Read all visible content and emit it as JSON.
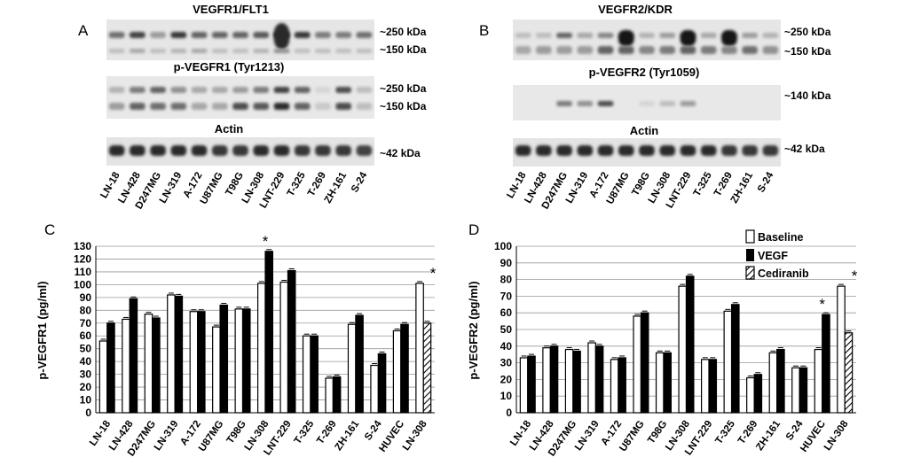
{
  "panels": {
    "A": {
      "letter": "A",
      "blots": [
        {
          "title": "VEGFR1/FLT1",
          "markers": [
            "~250 kDa",
            "~150 kDa"
          ]
        },
        {
          "title": "p-VEGFR1 (Tyr1213)",
          "markers": [
            "~250 kDa",
            "~150 kDa"
          ]
        },
        {
          "title": "Actin",
          "markers": [
            "~42 kDa"
          ]
        }
      ],
      "lanes": [
        "LN-18",
        "LN-428",
        "D247MG",
        "LN-319",
        "A-172",
        "U87MG",
        "T98G",
        "LN-308",
        "LNT-229",
        "T-325",
        "T-269",
        "ZH-161",
        "S-24"
      ]
    },
    "B": {
      "letter": "B",
      "blots": [
        {
          "title": "VEGFR2/KDR",
          "markers": [
            "~250 kDa",
            "~150 kDa"
          ]
        },
        {
          "title": "p-VEGFR2 (Tyr1059)",
          "markers": [
            "~140 kDa"
          ]
        },
        {
          "title": "Actin",
          "markers": [
            "~42 kDa"
          ]
        }
      ],
      "lanes": [
        "LN-18",
        "LN-428",
        "D247MG",
        "LN-319",
        "A-172",
        "U87MG",
        "T98G",
        "LN-308",
        "LNT-229",
        "T-325",
        "T-269",
        "ZH-161",
        "S-24"
      ]
    },
    "C": {
      "letter": "C"
    },
    "D": {
      "letter": "D"
    }
  },
  "legend": {
    "items": [
      "Baseline",
      "VEGF",
      "Cediranib"
    ]
  },
  "colors": {
    "baseline": "#ffffff",
    "vegf": "#000000",
    "grid": "#999999"
  },
  "chart_data": [
    {
      "type": "bar",
      "panel": "C",
      "ylabel": "p-VEGFR1 (pg/ml)",
      "ylim": [
        0,
        130
      ],
      "yticks": [
        0,
        10,
        20,
        30,
        40,
        50,
        60,
        70,
        80,
        90,
        100,
        110,
        120,
        130
      ],
      "categories": [
        "LN-18",
        "LN-428",
        "D247MG",
        "LN-319",
        "A-172",
        "U87MG",
        "T98G",
        "LN-308",
        "LNT-229",
        "T-325",
        "T-269",
        "ZH-161",
        "S-24",
        "HUVEC",
        "LN-308"
      ],
      "series": [
        {
          "name": "Baseline",
          "values": [
            56,
            73,
            77,
            92,
            79,
            67,
            81,
            101,
            102,
            60,
            27,
            69,
            37,
            64,
            101
          ]
        },
        {
          "name": "VEGF",
          "values": [
            70,
            89,
            74,
            91,
            79,
            84,
            81,
            126,
            111,
            60,
            28,
            76,
            46,
            69,
            null
          ]
        },
        {
          "name": "Cediranib",
          "values": [
            null,
            null,
            null,
            null,
            null,
            null,
            null,
            null,
            null,
            null,
            null,
            null,
            null,
            null,
            70
          ]
        }
      ],
      "annotations": [
        {
          "text": "*",
          "category_index": 7
        },
        {
          "text": "*",
          "category_index": 14
        }
      ]
    },
    {
      "type": "bar",
      "panel": "D",
      "ylabel": "p-VEGFR2 (pg/ml)",
      "ylim": [
        0,
        100
      ],
      "yticks": [
        0,
        10,
        20,
        30,
        40,
        50,
        60,
        70,
        80,
        90,
        100
      ],
      "categories": [
        "LN-18",
        "LN-428",
        "D247MG",
        "LN-319",
        "A-172",
        "U87MG",
        "T98G",
        "LN-308",
        "LNT-229",
        "T-325",
        "T-269",
        "ZH-161",
        "S-24",
        "HUVEC",
        "LN-308"
      ],
      "series": [
        {
          "name": "Baseline",
          "values": [
            33,
            39,
            38,
            42,
            32,
            58,
            36,
            76,
            32,
            61,
            21,
            36,
            27,
            38,
            76
          ]
        },
        {
          "name": "VEGF",
          "values": [
            34,
            40,
            37,
            40,
            33,
            60,
            36,
            82,
            32,
            65,
            23,
            38,
            27,
            59,
            null
          ]
        },
        {
          "name": "Cediranib",
          "values": [
            null,
            null,
            null,
            null,
            null,
            null,
            null,
            null,
            null,
            null,
            null,
            null,
            null,
            null,
            48
          ]
        }
      ],
      "annotations": [
        {
          "text": "*",
          "category_index": 13
        },
        {
          "text": "*",
          "category_index": 14
        }
      ],
      "legend_position": "top-right"
    }
  ]
}
